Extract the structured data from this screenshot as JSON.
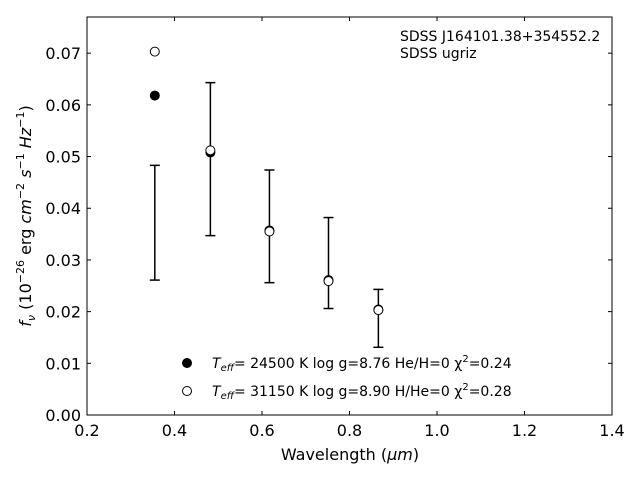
{
  "chart_data": {
    "type": "scatter",
    "xlabel": "Wavelength (μm)",
    "ylabel": "f_ν (10^-26 erg cm^-2 s^-1 Hz^-1)",
    "xlim": [
      0.2,
      1.4
    ],
    "ylim": [
      0.0,
      0.077
    ],
    "xticks": [
      "0.2",
      "0.4",
      "0.6",
      "0.8",
      "1.0",
      "1.2",
      "1.4"
    ],
    "yticks": [
      "0.00",
      "0.01",
      "0.02",
      "0.03",
      "0.04",
      "0.05",
      "0.06",
      "0.07"
    ],
    "grid": false,
    "legend_position": "lower-center",
    "annotation_lines": [
      "SDSS J164101.38+354552.2",
      "SDSS ugriz"
    ],
    "observed": {
      "x": [
        0.355,
        0.482,
        0.617,
        0.752,
        0.866
      ],
      "y": [
        0.0372,
        0.0495,
        0.0365,
        0.0294,
        0.0187
      ],
      "err": [
        0.0111,
        0.0148,
        0.0109,
        0.0088,
        0.0056
      ]
    },
    "series": [
      {
        "name": "T_eff= 24500 K  log g=8.76  He/H=0  χ²=0.24",
        "marker": "filled-circle",
        "x": [
          0.355,
          0.482,
          0.617,
          0.752,
          0.866
        ],
        "y": [
          0.0618,
          0.0508,
          0.0357,
          0.0261,
          0.0204
        ]
      },
      {
        "name": "T_eff= 31150 K  log g=8.90  H/He=0  χ²=0.28",
        "marker": "open-circle",
        "x": [
          0.355,
          0.482,
          0.617,
          0.752,
          0.866
        ],
        "y": [
          0.0703,
          0.0512,
          0.0355,
          0.0259,
          0.0203
        ]
      }
    ],
    "legend": {
      "entries": [
        {
          "parts": [
            "T",
            "eff",
            "= 24500 K  log g=8.76  He/H=0  χ",
            "2",
            "=0.24"
          ]
        },
        {
          "parts": [
            "T",
            "eff",
            "= 31150 K  log g=8.90  H/He=0  χ",
            "2",
            "=0.28"
          ]
        }
      ]
    },
    "ylabel_parts": [
      "f",
      "ν",
      " (10",
      "−26",
      " erg ",
      "cm",
      "−2",
      " ",
      "s",
      "−1",
      " ",
      "Hz",
      "−1",
      ")"
    ],
    "xlabel_parts": [
      "Wavelength (",
      "μm",
      ")"
    ],
    "colors": {
      "marker": "#000000",
      "axis": "#000000",
      "background": "#ffffff"
    }
  }
}
